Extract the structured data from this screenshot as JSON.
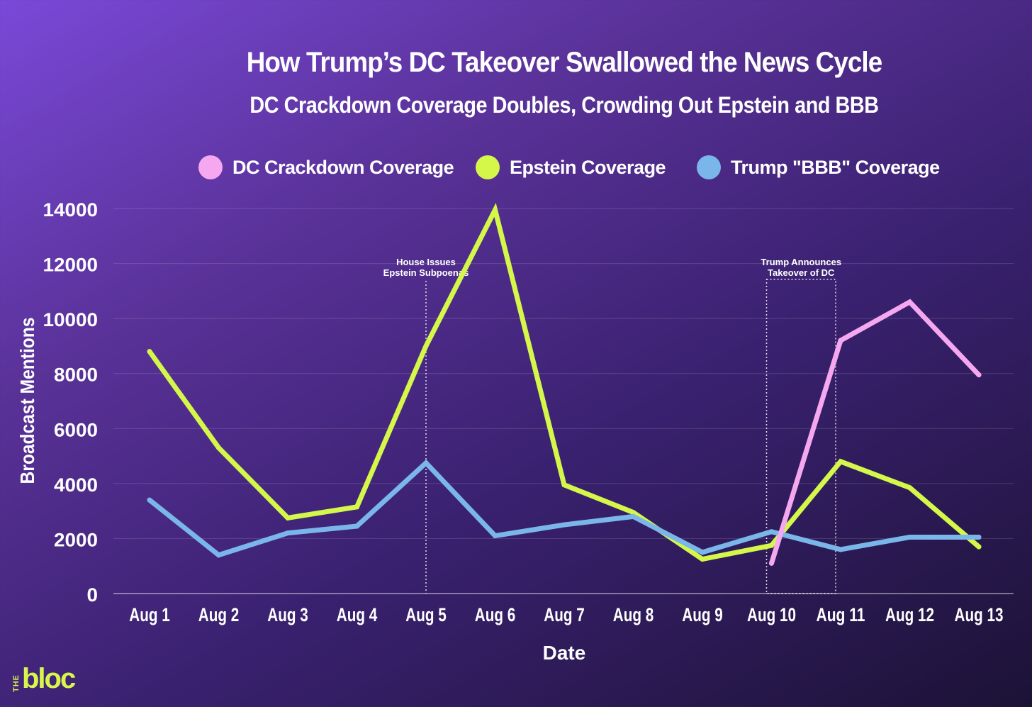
{
  "chart_data": {
    "type": "line",
    "title": "How Trump’s DC Takeover Swallowed the News Cycle",
    "subtitle": "DC Crackdown Coverage Doubles, Crowding Out Epstein and BBB",
    "xlabel": "Date",
    "ylabel": "Broadcast Mentions",
    "ylim": [
      0,
      14000
    ],
    "yticks": [
      0,
      2000,
      4000,
      6000,
      8000,
      10000,
      12000,
      14000
    ],
    "categories": [
      "Aug 1",
      "Aug 2",
      "Aug 3",
      "Aug 4",
      "Aug 5",
      "Aug 6",
      "Aug 7",
      "Aug 8",
      "Aug 9",
      "Aug 10",
      "Aug 11",
      "Aug 12",
      "Aug 13"
    ],
    "grid": true,
    "legend_position": "top",
    "series": [
      {
        "name": "DC Crackdown Coverage",
        "color": "#f5a8f0",
        "values": [
          null,
          null,
          null,
          null,
          null,
          null,
          null,
          null,
          null,
          1100,
          9200,
          10600,
          7950
        ]
      },
      {
        "name": "Epstein Coverage",
        "color": "#d4f74a",
        "values": [
          8800,
          5300,
          2750,
          3150,
          9000,
          13950,
          3950,
          2950,
          1250,
          1750,
          4800,
          3850,
          1700
        ]
      },
      {
        "name": "Trump \"BBB\" Coverage",
        "color": "#7ab6ea",
        "values": [
          3400,
          1400,
          2200,
          2450,
          4750,
          2100,
          2500,
          2800,
          1500,
          2250,
          1600,
          2050,
          2050
        ]
      }
    ],
    "annotations": [
      {
        "lines": [
          "House Issues",
          "Epstein Subpoenas"
        ],
        "at": "Aug 5"
      },
      {
        "lines": [
          "Trump Announces",
          "Takeover of DC"
        ],
        "from": "Aug 10",
        "to": "Aug 11"
      }
    ]
  },
  "logo": {
    "small": "THE",
    "main": "bloc"
  }
}
